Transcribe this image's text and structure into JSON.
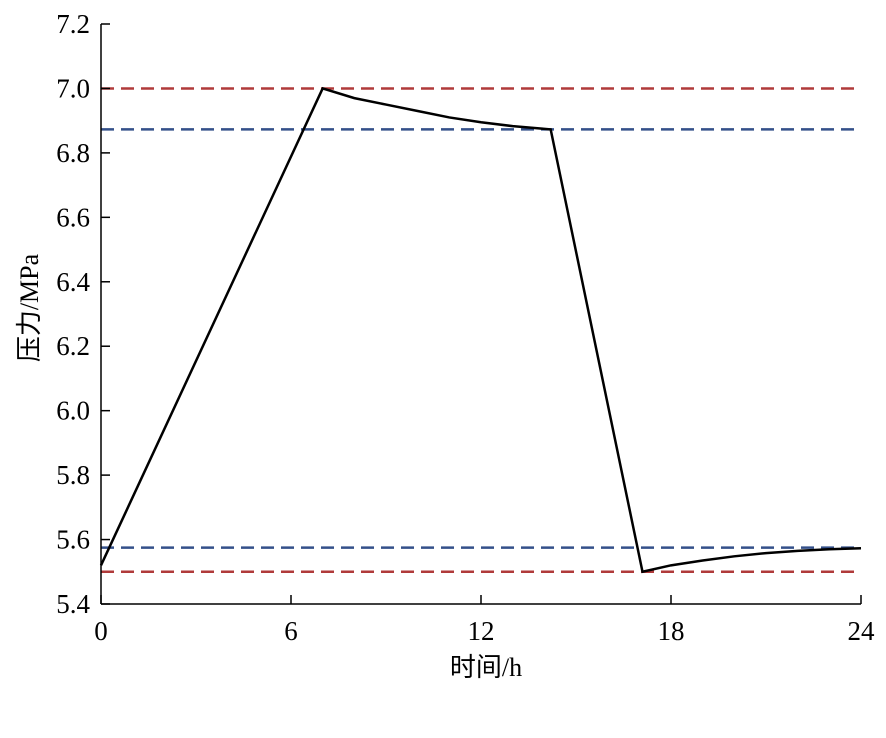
{
  "chart_data": {
    "type": "line",
    "title": "",
    "xlabel": "时间/h",
    "ylabel": "压力/MPa",
    "xlim": [
      0,
      24
    ],
    "ylim": [
      5.4,
      7.2
    ],
    "xticks": [
      0,
      6,
      12,
      18,
      24
    ],
    "yticks": [
      5.4,
      5.6,
      5.8,
      6.0,
      6.2,
      6.4,
      6.6,
      6.8,
      7.0,
      7.2
    ],
    "grid": false,
    "legend": "none",
    "series": [
      {
        "color": "#000000",
        "style": "solid",
        "x": [
          0,
          7,
          8,
          9,
          10,
          11,
          12,
          13,
          14.2,
          17.1,
          18,
          19,
          20,
          21,
          22,
          23,
          24
        ],
        "y": [
          5.52,
          7.0,
          6.97,
          6.95,
          6.93,
          6.91,
          6.895,
          6.883,
          6.873,
          5.5,
          5.52,
          5.535,
          5.548,
          5.558,
          5.565,
          5.57,
          5.573
        ]
      }
    ],
    "reference_lines": [
      {
        "y": 7.0,
        "color": "#b03a3a",
        "style": "dashed"
      },
      {
        "y": 6.873,
        "color": "#34508a",
        "style": "dashed"
      },
      {
        "y": 5.575,
        "color": "#34508a",
        "style": "dashed"
      },
      {
        "y": 5.5,
        "color": "#b03a3a",
        "style": "dashed"
      }
    ]
  }
}
